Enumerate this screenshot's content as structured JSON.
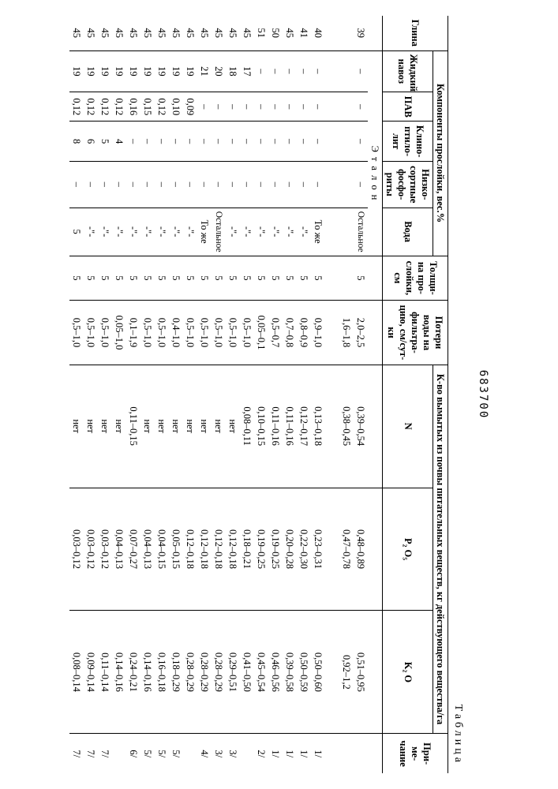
{
  "docNumber": "683700",
  "tableLabel": "Таблица",
  "headers": {
    "group_comp": "Компоненты прослойки, вес.%",
    "glina": "Глина",
    "navoz": "Жидкий навоз",
    "pav": "ПАВ",
    "klino": "Клино-птило-лит",
    "fosfo": "Низко-сортные фосфо-риты",
    "voda": "Вода",
    "sloy": "Толщи-на про-слойки, см",
    "poteri": "Потери воды на фильтра-цию, см/сут-ки",
    "group_wash": "К-во вымытых из почвы питательных веществ, кг действующего вещества/га",
    "n": "N",
    "p2o5": "P₂ O₅",
    "k2o": "K₂ O",
    "prim": "При-ме-чание"
  },
  "etalonLabel": "Эталон",
  "rows": [
    {
      "glina": "39",
      "navoz": "–",
      "pav": "–",
      "klino": "–",
      "fosfo": "–",
      "voda": "Осталь-ное",
      "sloy": "5",
      "poteri": "2,0–2,5",
      "n": "0,39–0,54",
      "p2o5": "0,48–0,89",
      "k2o": "0,51–0,95",
      "prim": ""
    },
    {
      "glina": "",
      "navoz": "",
      "pav": "",
      "klino": "",
      "fosfo": "",
      "voda": "",
      "sloy": "",
      "poteri": "1,6–1,8",
      "n": "0,38–0,45",
      "p2o5": "0,47–0,78",
      "k2o": "0,92–1,2",
      "prim": ""
    },
    {
      "glina": "40",
      "navoz": "–",
      "pav": "–",
      "klino": "–",
      "fosfo": "–",
      "voda": "То же",
      "sloy": "5",
      "poteri": "0,9–1,0",
      "n": "0,13–0,18",
      "p2o5": "0,23–0,31",
      "k2o": "0,50–0,60",
      "prim": "1/"
    },
    {
      "glina": "41",
      "navoz": "–",
      "pav": "–",
      "klino": "–",
      "fosfo": "–",
      "voda": "-\"-",
      "sloy": "5",
      "poteri": "0,8–0,9",
      "n": "0,12–0,17",
      "p2o5": "0,22–0,30",
      "k2o": "0,50–0,59",
      "prim": "1/"
    },
    {
      "glina": "45",
      "navoz": "–",
      "pav": "–",
      "klino": "–",
      "fosfo": "–",
      "voda": "-\"-",
      "sloy": "5",
      "poteri": "0,7–0,8",
      "n": "0,11–0,16",
      "p2o5": "0,20–0,28",
      "k2o": "0,39–0,58",
      "prim": "1/"
    },
    {
      "glina": "50",
      "navoz": "–",
      "pav": "–",
      "klino": "–",
      "fosfo": "–",
      "voda": "-\"-",
      "sloy": "5",
      "poteri": "0,5–0,7",
      "n": "0,11–0,16",
      "p2o5": "0,19–0,25",
      "k2o": "0,46–0,56",
      "prim": "1/"
    },
    {
      "glina": "51",
      "navoz": "–",
      "pav": "–",
      "klino": "–",
      "fosfo": "–",
      "voda": "-\"-",
      "sloy": "5",
      "poteri": "0,05–0,1",
      "n": "0,10–0,15",
      "p2o5": "0,19–0,25",
      "k2o": "0,45–0,54",
      "prim": "2/"
    },
    {
      "glina": "45",
      "navoz": "17",
      "pav": "–",
      "klino": "–",
      "fosfo": "–",
      "voda": "-\"-",
      "sloy": "5",
      "poteri": "0,5–1,0",
      "n": "0,08–0,11",
      "p2o5": "0,18–0,21",
      "k2o": "0,41–0,50",
      "prim": ""
    },
    {
      "glina": "45",
      "navoz": "18",
      "pav": "–",
      "klino": "–",
      "fosfo": "–",
      "voda": "-\"-",
      "sloy": "5",
      "poteri": "0,5–1,0",
      "n": "нет",
      "p2o5": "0,12–0,18",
      "k2o": "0,29–0,51",
      "prim": "3/"
    },
    {
      "glina": "45",
      "navoz": "20",
      "pav": "–",
      "klino": "–",
      "fosfo": "–",
      "voda": "Осталь-ное",
      "sloy": "5",
      "poteri": "0,5–1,0",
      "n": "нет",
      "p2o5": "0,12–0,18",
      "k2o": "0,28–0,29",
      "prim": "3/"
    },
    {
      "glina": "45",
      "navoz": "21",
      "pav": "–",
      "klino": "–",
      "fosfo": "–",
      "voda": "То же",
      "sloy": "5",
      "poteri": "0,5–1,0",
      "n": "нет",
      "p2o5": "0,12–0,18",
      "k2o": "0,28–0,29",
      "prim": "4/"
    },
    {
      "glina": "45",
      "navoz": "19",
      "pav": "0,09",
      "klino": "–",
      "fosfo": "–",
      "voda": "-\"-",
      "sloy": "5",
      "poteri": "0,5–1,0",
      "n": "нет",
      "p2o5": "0,12–0,18",
      "k2o": "0,28–0,29",
      "prim": ""
    },
    {
      "glina": "45",
      "navoz": "19",
      "pav": "0,10",
      "klino": "–",
      "fosfo": "–",
      "voda": "-\"-",
      "sloy": "5",
      "poteri": "0,4–1,0",
      "n": "нет",
      "p2o5": "0,05–0,15",
      "k2o": "0,18–0,29",
      "prim": "5/"
    },
    {
      "glina": "45",
      "navoz": "19",
      "pav": "0,12",
      "klino": "–",
      "fosfo": "–",
      "voda": "-\"-",
      "sloy": "5",
      "poteri": "0,5–1,0",
      "n": "нет",
      "p2o5": "0,04–0,15",
      "k2o": "0,16–0,18",
      "prim": "5/"
    },
    {
      "glina": "45",
      "navoz": "19",
      "pav": "0,15",
      "klino": "–",
      "fosfo": "–",
      "voda": "-\"-",
      "sloy": "5",
      "poteri": "0,5–1,0",
      "n": "нет",
      "p2o5": "0,04–0,13",
      "k2o": "0,14–0,16",
      "prim": "5/"
    },
    {
      "glina": "45",
      "navoz": "19",
      "pav": "0,16",
      "klino": "–",
      "fosfo": "–",
      "voda": "-\"-",
      "sloy": "5",
      "poteri": "0,1–1,9",
      "n": "0,11–0,15",
      "p2o5": "0,07–0,27",
      "k2o": "0,24–0,21",
      "prim": "6/"
    },
    {
      "glina": "45",
      "navoz": "19",
      "pav": "0,12",
      "klino": "4",
      "fosfo": "–",
      "voda": "-\"-",
      "sloy": "5",
      "poteri": "0,05–1,0",
      "n": "нет",
      "p2o5": "0,04–0,13",
      "k2o": "0,14–0,16",
      "prim": ""
    },
    {
      "glina": "45",
      "navoz": "19",
      "pav": "0,12",
      "klino": "5",
      "fosfo": "–",
      "voda": "-\"-",
      "sloy": "5",
      "poteri": "0,5–1,0",
      "n": "нет",
      "p2o5": "0,03–0,12",
      "k2o": "0,11–0,14",
      "prim": "7/"
    },
    {
      "glina": "45",
      "navoz": "19",
      "pav": "0,12",
      "klino": "6",
      "fosfo": "–",
      "voda": "-\"-",
      "sloy": "5",
      "poteri": "0,5–1,0",
      "n": "нет",
      "p2o5": "0,03–0,12",
      "k2o": "0,09–0,14",
      "prim": "7/"
    },
    {
      "glina": "45",
      "navoz": "19",
      "pav": "0,12",
      "klino": "8",
      "fosfo": "–",
      "voda": "5",
      "sloy": "5",
      "poteri": "0,5–1,0",
      "n": "нет",
      "p2o5": "0,03–0,12",
      "k2o": "0,08–0,14",
      "prim": "7/"
    }
  ]
}
